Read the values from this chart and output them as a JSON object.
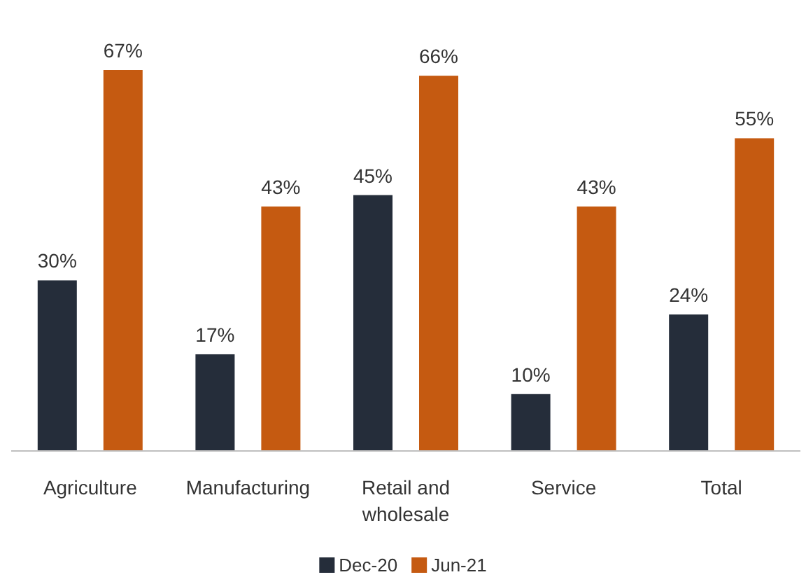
{
  "chart_data": {
    "type": "bar",
    "categories": [
      "Agriculture",
      "Manufacturing",
      "Retail and wholesale",
      "Service",
      "Total"
    ],
    "series": [
      {
        "name": "Dec-20",
        "color": "#252d3a",
        "values": [
          30,
          17,
          45,
          10,
          24
        ],
        "value_labels": [
          "30%",
          "17%",
          "45%",
          "10%",
          "24%"
        ]
      },
      {
        "name": "Jun-21",
        "color": "#c55a11",
        "values": [
          67,
          43,
          66,
          43,
          55
        ],
        "value_labels": [
          "67%",
          "43%",
          "66%",
          "43%",
          "55%"
        ]
      }
    ],
    "tick_labels": "x",
    "legend": "bottom"
  }
}
